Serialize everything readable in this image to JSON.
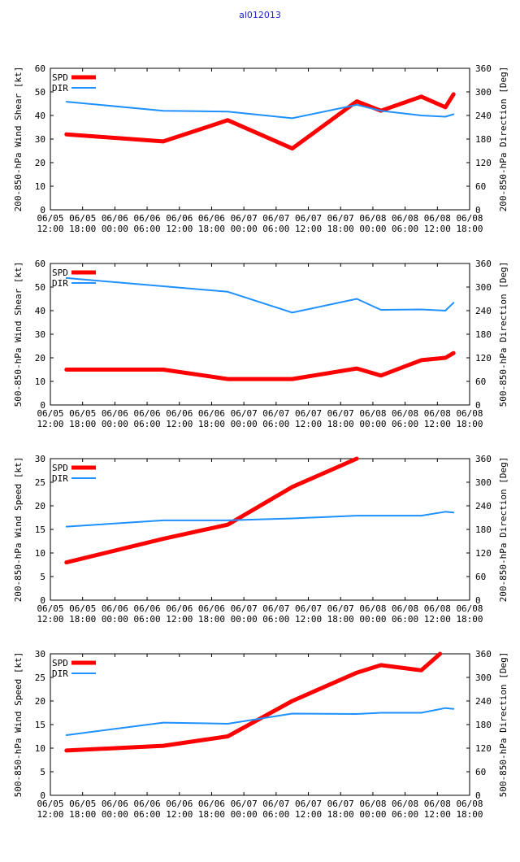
{
  "figure": {
    "title": "al012013"
  },
  "x_ticks": [
    {
      "x": 0,
      "line1": "06/05",
      "line2": "12:00"
    },
    {
      "x": 6,
      "line1": "06/05",
      "line2": "18:00"
    },
    {
      "x": 12,
      "line1": "06/06",
      "line2": "00:00"
    },
    {
      "x": 18,
      "line1": "06/06",
      "line2": "06:00"
    },
    {
      "x": 24,
      "line1": "06/06",
      "line2": "12:00"
    },
    {
      "x": 30,
      "line1": "06/06",
      "line2": "18:00"
    },
    {
      "x": 36,
      "line1": "06/07",
      "line2": "00:00"
    },
    {
      "x": 42,
      "line1": "06/07",
      "line2": "06:00"
    },
    {
      "x": 48,
      "line1": "06/07",
      "line2": "12:00"
    },
    {
      "x": 54,
      "line1": "06/07",
      "line2": "18:00"
    },
    {
      "x": 60,
      "line1": "06/08",
      "line2": "00:00"
    },
    {
      "x": 66,
      "line1": "06/08",
      "line2": "06:00"
    },
    {
      "x": 72,
      "line1": "06/08",
      "line2": "12:00"
    },
    {
      "x": 78,
      "line1": "06/08",
      "line2": "18:00"
    }
  ],
  "colors": {
    "spd": "#ff0000",
    "dir": "#1e90ff",
    "axis": "#000000"
  },
  "chart_data": [
    {
      "type": "line",
      "xlabel": "",
      "ylabel": "200-850-hPa Wind Shear [kt]",
      "y2label": "200-850-hPa Direction [Deg]",
      "xlim": [
        0,
        78
      ],
      "ylim": [
        0,
        60
      ],
      "yticks": [
        0,
        10,
        20,
        30,
        40,
        50,
        60
      ],
      "y2lim": [
        0,
        360
      ],
      "y2ticks": [
        0,
        60,
        120,
        180,
        240,
        300,
        360
      ],
      "legend_position": "top-left",
      "series": [
        {
          "name": "SPD",
          "axis": "left",
          "x": [
            3,
            21,
            33,
            45,
            57,
            61.5,
            69,
            73.5,
            75
          ],
          "values": [
            32,
            29,
            38,
            26,
            46,
            42,
            48,
            43.5,
            49
          ]
        },
        {
          "name": "DIR",
          "axis": "right",
          "x": [
            3,
            21,
            33,
            45,
            57,
            61.5,
            69,
            73.5,
            75
          ],
          "values": [
            275,
            252,
            250,
            233,
            267,
            252,
            240,
            237,
            243
          ]
        }
      ]
    },
    {
      "type": "line",
      "xlabel": "",
      "ylabel": "500-850-hPa Wind Shear [kt]",
      "y2label": "500-850-hPa Direction [Deg]",
      "xlim": [
        0,
        78
      ],
      "ylim": [
        0,
        60
      ],
      "yticks": [
        0,
        10,
        20,
        30,
        40,
        50,
        60
      ],
      "y2lim": [
        0,
        360
      ],
      "y2ticks": [
        0,
        60,
        120,
        180,
        240,
        300,
        360
      ],
      "legend_position": "top-left",
      "series": [
        {
          "name": "SPD",
          "axis": "left",
          "x": [
            3,
            21,
            33,
            45,
            57,
            61.5,
            69,
            73.5,
            75
          ],
          "values": [
            15,
            15,
            11,
            11,
            15.5,
            12.5,
            19,
            20,
            22
          ]
        },
        {
          "name": "DIR",
          "axis": "right",
          "x": [
            3,
            21,
            33,
            45,
            57,
            61.5,
            69,
            73.5,
            75
          ],
          "values": [
            323,
            302,
            288,
            235,
            270,
            242,
            243,
            240,
            260
          ]
        }
      ]
    },
    {
      "type": "line",
      "xlabel": "",
      "ylabel": "200-850-hPa Wind Speed [kt]",
      "y2label": "200-850-hPa Direction [Deg]",
      "xlim": [
        0,
        78
      ],
      "ylim": [
        0,
        30
      ],
      "yticks": [
        0,
        5,
        10,
        15,
        20,
        25,
        30
      ],
      "y2lim": [
        0,
        360
      ],
      "y2ticks": [
        0,
        60,
        120,
        180,
        240,
        300,
        360
      ],
      "legend_position": "top-left",
      "series": [
        {
          "name": "SPD",
          "axis": "left",
          "x": [
            3,
            21,
            33,
            45,
            57
          ],
          "values": [
            8,
            13,
            16,
            24,
            30
          ]
        },
        {
          "name": "DIR",
          "axis": "right",
          "x": [
            3,
            21,
            33,
            45,
            57,
            69,
            73.5,
            75
          ],
          "values": [
            187,
            203,
            203,
            208,
            215,
            215,
            225,
            223
          ]
        }
      ]
    },
    {
      "type": "line",
      "xlabel": "",
      "ylabel": "500-850-hPa Wind Speed [kt]",
      "y2label": "500-850-hPa Direction [Deg]",
      "xlim": [
        0,
        78
      ],
      "ylim": [
        0,
        30
      ],
      "yticks": [
        0,
        5,
        10,
        15,
        20,
        25,
        30
      ],
      "y2lim": [
        0,
        360
      ],
      "y2ticks": [
        0,
        60,
        120,
        180,
        240,
        300,
        360
      ],
      "legend_position": "top-left",
      "series": [
        {
          "name": "SPD",
          "axis": "left",
          "x": [
            3,
            21,
            33,
            45,
            57,
            61.5,
            69,
            72.5
          ],
          "values": [
            9.5,
            10.5,
            12.5,
            20,
            26,
            27.6,
            26.5,
            30
          ]
        },
        {
          "name": "DIR",
          "axis": "right",
          "x": [
            3,
            21,
            33,
            39,
            45,
            57,
            61.5,
            69,
            73.5,
            75
          ],
          "values": [
            153,
            185,
            182,
            195,
            208,
            207,
            210,
            210,
            222,
            220
          ]
        }
      ]
    }
  ]
}
